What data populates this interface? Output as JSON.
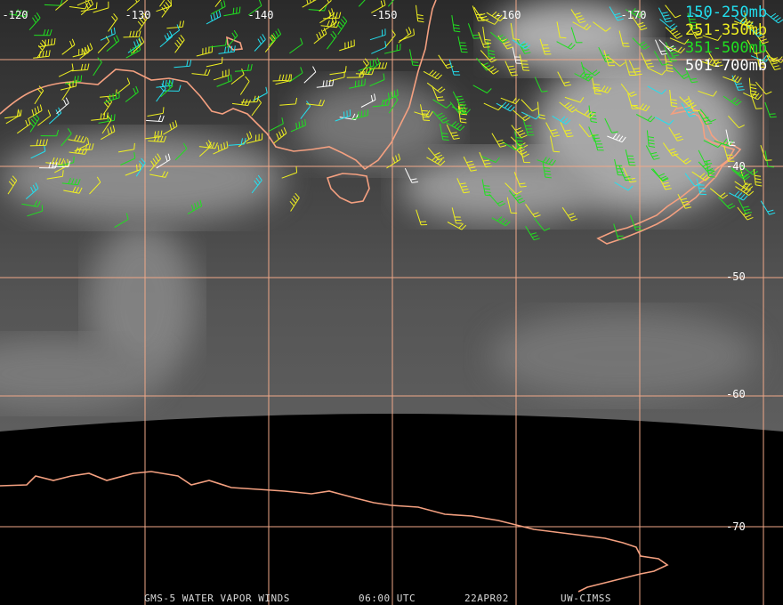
{
  "map": {
    "longitude_labels": [
      "-120",
      "-130",
      "-140",
      "-150",
      "-160",
      "-170"
    ],
    "latitude_labels": [
      "-40",
      "-50",
      "-60",
      "-70"
    ],
    "legend": [
      {
        "label": "150-250mb",
        "color": "#22e0f0"
      },
      {
        "label": "251-350mb",
        "color": "#f0f020"
      },
      {
        "label": "351-500mb",
        "color": "#20e020"
      },
      {
        "label": "501-700mb",
        "color": "#ffffff"
      }
    ],
    "footer": [
      "GMS-5 WATER VAPOR WINDS",
      "06:00 UTC",
      "22APR02",
      "UW-CIMSS"
    ]
  }
}
